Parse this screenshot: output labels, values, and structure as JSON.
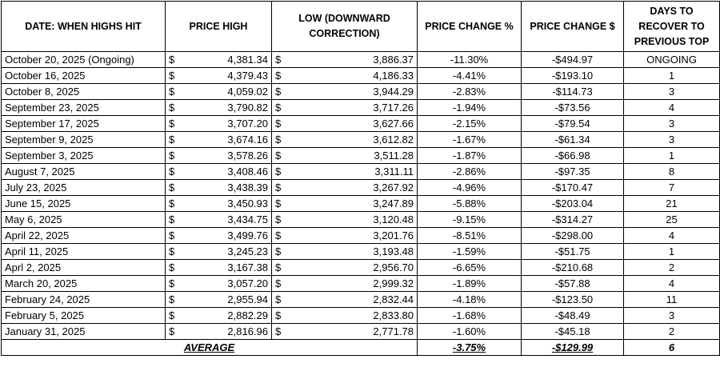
{
  "table": {
    "header": [
      "DATE: WHEN HIGHS HIT",
      "PRICE HIGH",
      "LOW (DOWNWARD CORRECTION)",
      "PRICE CHANGE %",
      "PRICE CHANGE $",
      "DAYS TO RECOVER TO PREVIOUS TOP"
    ],
    "rows": [
      [
        "October 20, 2025 (Ongoing)",
        "$",
        "4,381.34",
        "$",
        "3,886.37",
        "-11.30%",
        "-$494.97",
        "ONGOING"
      ],
      [
        "October 16, 2025",
        "$",
        "4,379.43",
        "$",
        "4,186.33",
        "-4.41%",
        "-$193.10",
        "1"
      ],
      [
        "October 8, 2025",
        "$",
        "4,059.02",
        "$",
        "3,944.29",
        "-2.83%",
        "-$114.73",
        "3"
      ],
      [
        "September 23, 2025",
        "$",
        "3,790.82",
        "$",
        "3,717.26",
        "-1.94%",
        "-$73.56",
        "4"
      ],
      [
        "September 17, 2025",
        "$",
        "3,707.20",
        "$",
        "3,627.66",
        "-2.15%",
        "-$79.54",
        "3"
      ],
      [
        "September 9, 2025",
        "$",
        "3,674.16",
        "$",
        "3,612.82",
        "-1.67%",
        "-$61.34",
        "3"
      ],
      [
        "September 3, 2025",
        "$",
        "3,578.26",
        "$",
        "3,511.28",
        "-1.87%",
        "-$66.98",
        "1"
      ],
      [
        "August 7, 2025",
        "$",
        "3,408.46",
        "$",
        "3,311.11",
        "-2.86%",
        "-$97.35",
        "8"
      ],
      [
        "July 23, 2025",
        "$",
        "3,438.39",
        "$",
        "3,267.92",
        "-4.96%",
        "-$170.47",
        "7"
      ],
      [
        "June 15, 2025",
        "$",
        "3,450.93",
        "$",
        "3,247.89",
        "-5.88%",
        "-$203.04",
        "21"
      ],
      [
        "May 6, 2025",
        "$",
        "3,434.75",
        "$",
        "3,120.48",
        "-9.15%",
        "-$314.27",
        "25"
      ],
      [
        "April 22, 2025",
        "$",
        "3,499.76",
        "$",
        "3,201.76",
        "-8.51%",
        "-$298.00",
        "4"
      ],
      [
        "April 11, 2025",
        "$",
        "3,245.23",
        "$",
        "3,193.48",
        "-1.59%",
        "-$51.75",
        "1"
      ],
      [
        "Aprl 2, 2025",
        "$",
        "3,167.38",
        "$",
        "2,956.70",
        "-6.65%",
        "-$210.68",
        "2"
      ],
      [
        "March 20, 2025",
        "$",
        "3,057.20",
        "$",
        "2,999.32",
        "-1.89%",
        "-$57.88",
        "4"
      ],
      [
        "February 24, 2025",
        "$",
        "2,955.94",
        "$",
        "2,832.44",
        "-4.18%",
        "-$123.50",
        "11"
      ],
      [
        "February 5, 2025",
        "$",
        "2,882.29",
        "$",
        "2,833.80",
        "-1.68%",
        "-$48.49",
        "3"
      ],
      [
        "January 31, 2025",
        "$",
        "2,816.96",
        "$",
        "2,771.78",
        "-1.60%",
        "-$45.18",
        "2"
      ]
    ],
    "footer": [
      "AVERAGE",
      "-3.75%",
      "-$129.99",
      "6"
    ]
  }
}
